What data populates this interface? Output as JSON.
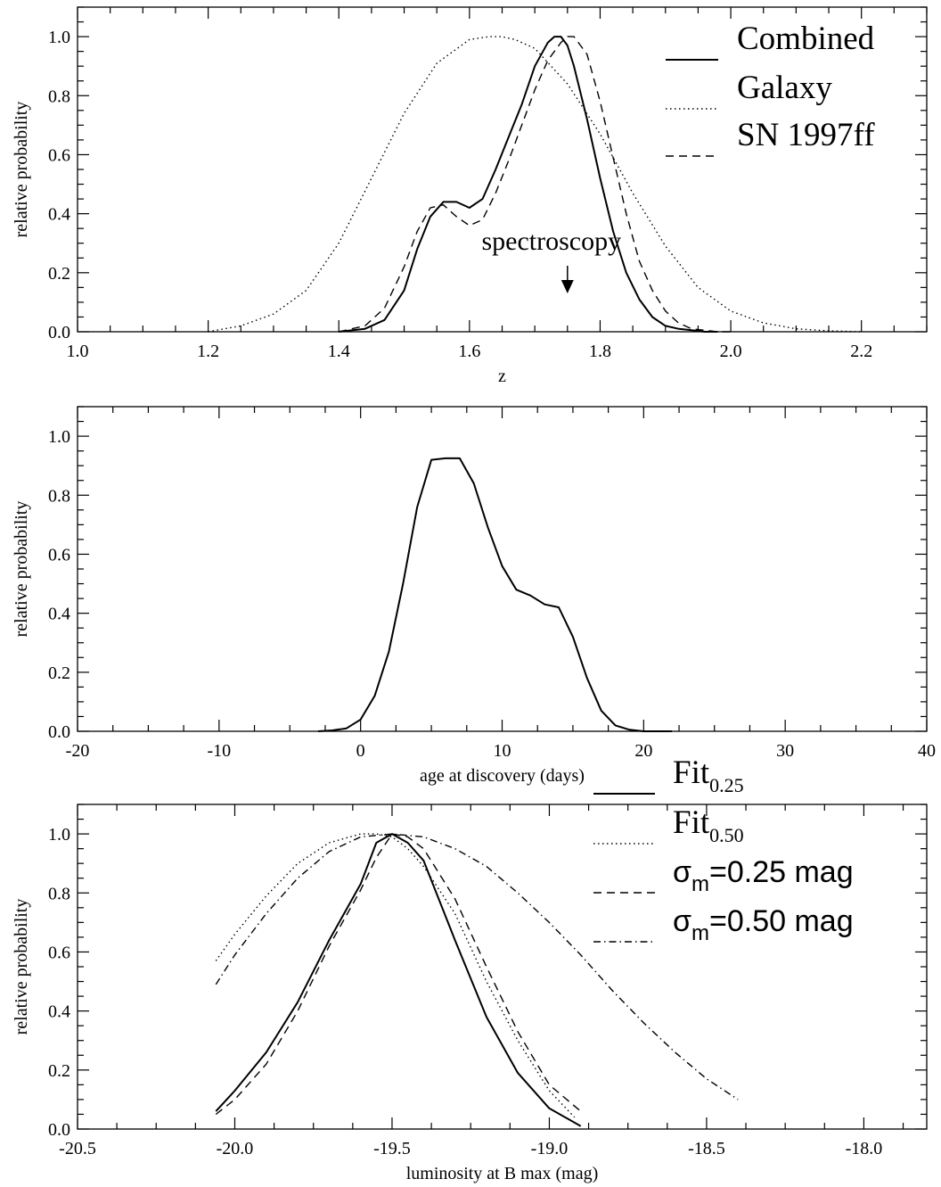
{
  "chart_data": [
    {
      "type": "line",
      "xlabel": "z",
      "ylabel": "relative probability",
      "xlim": [
        1.0,
        2.3
      ],
      "ylim": [
        0.0,
        1.1
      ],
      "xticks": [
        "1.0",
        "1.2",
        "1.4",
        "1.6",
        "1.8",
        "2.0",
        "2.2"
      ],
      "yticks": [
        "0.0",
        "0.2",
        "0.4",
        "0.6",
        "0.8",
        "1.0"
      ],
      "legend_position": "top-right",
      "series": [
        {
          "name": "Combined",
          "style": "solid",
          "x": [
            1.4,
            1.44,
            1.47,
            1.5,
            1.52,
            1.54,
            1.56,
            1.58,
            1.6,
            1.62,
            1.64,
            1.66,
            1.68,
            1.7,
            1.72,
            1.73,
            1.74,
            1.75,
            1.76,
            1.78,
            1.8,
            1.82,
            1.84,
            1.86,
            1.88,
            1.9,
            1.92,
            1.94,
            1.96,
            1.98
          ],
          "y": [
            0.0,
            0.01,
            0.04,
            0.14,
            0.28,
            0.39,
            0.44,
            0.44,
            0.42,
            0.45,
            0.55,
            0.66,
            0.77,
            0.9,
            0.98,
            1.0,
            1.0,
            0.97,
            0.9,
            0.72,
            0.52,
            0.34,
            0.2,
            0.11,
            0.05,
            0.02,
            0.01,
            0.005,
            0.0,
            0.0
          ]
        },
        {
          "name": "Galaxy",
          "style": "dotted",
          "x": [
            1.2,
            1.25,
            1.3,
            1.35,
            1.4,
            1.45,
            1.5,
            1.55,
            1.6,
            1.63,
            1.65,
            1.67,
            1.7,
            1.75,
            1.8,
            1.85,
            1.9,
            1.95,
            2.0,
            2.05,
            2.1,
            2.15,
            2.2
          ],
          "y": [
            0.0,
            0.02,
            0.06,
            0.14,
            0.3,
            0.52,
            0.74,
            0.91,
            0.99,
            1.0,
            1.0,
            0.99,
            0.96,
            0.84,
            0.67,
            0.47,
            0.29,
            0.15,
            0.07,
            0.03,
            0.01,
            0.003,
            0.0
          ]
        },
        {
          "name": "SN 1997ff",
          "style": "dashed",
          "x": [
            1.4,
            1.44,
            1.47,
            1.5,
            1.52,
            1.54,
            1.56,
            1.58,
            1.6,
            1.62,
            1.64,
            1.66,
            1.68,
            1.7,
            1.72,
            1.74,
            1.75,
            1.76,
            1.78,
            1.8,
            1.82,
            1.84,
            1.86,
            1.88,
            1.9,
            1.92,
            1.94,
            1.96,
            1.98,
            2.0
          ],
          "y": [
            0.0,
            0.02,
            0.08,
            0.22,
            0.34,
            0.42,
            0.43,
            0.39,
            0.36,
            0.38,
            0.47,
            0.58,
            0.7,
            0.82,
            0.92,
            0.98,
            1.0,
            1.0,
            0.94,
            0.78,
            0.59,
            0.4,
            0.24,
            0.14,
            0.07,
            0.03,
            0.01,
            0.005,
            0.0,
            0.0
          ]
        }
      ],
      "annotations": [
        {
          "text": "spectroscopy",
          "x": 1.75,
          "y": 0.26,
          "arrow": "down"
        }
      ]
    },
    {
      "type": "line",
      "xlabel": "age at discovery (days)",
      "ylabel": "relative probability",
      "xlim": [
        -20,
        40
      ],
      "ylim": [
        0.0,
        1.1
      ],
      "xticks": [
        "-20",
        "-10",
        "0",
        "10",
        "20",
        "30",
        "40"
      ],
      "yticks": [
        "0.0",
        "0.2",
        "0.4",
        "0.6",
        "0.8",
        "1.0"
      ],
      "series": [
        {
          "style": "solid",
          "x": [
            -3,
            -2,
            -1,
            0,
            1,
            2,
            3,
            4,
            5,
            6,
            7,
            8,
            9,
            10,
            11,
            12,
            13,
            14,
            15,
            16,
            17,
            18,
            19,
            20,
            21,
            22
          ],
          "y": [
            0.0,
            0.003,
            0.01,
            0.04,
            0.12,
            0.27,
            0.5,
            0.76,
            0.92,
            0.925,
            0.925,
            0.84,
            0.69,
            0.56,
            0.48,
            0.46,
            0.43,
            0.42,
            0.32,
            0.18,
            0.07,
            0.02,
            0.005,
            0.0,
            0.0,
            0.0
          ]
        }
      ]
    },
    {
      "type": "line",
      "xlabel": "luminosity at B max (mag)",
      "ylabel": "relative probability",
      "xlim": [
        -20.5,
        -17.8
      ],
      "ylim": [
        0.0,
        1.1
      ],
      "xticks": [
        "-20.5",
        "-20.0",
        "-19.5",
        "-19.0",
        "-18.5",
        "-18.0"
      ],
      "yticks": [
        "0.0",
        "0.2",
        "0.4",
        "0.6",
        "0.8",
        "1.0"
      ],
      "legend_position": "top-right",
      "series": [
        {
          "name": "Fit",
          "name_sub": "0.25",
          "style": "solid",
          "x": [
            -20.06,
            -20.0,
            -19.9,
            -19.8,
            -19.7,
            -19.6,
            -19.55,
            -19.5,
            -19.45,
            -19.4,
            -19.3,
            -19.2,
            -19.1,
            -19.0,
            -18.9
          ],
          "y": [
            0.06,
            0.13,
            0.26,
            0.43,
            0.64,
            0.83,
            0.97,
            1.0,
            0.97,
            0.91,
            0.64,
            0.38,
            0.19,
            0.07,
            0.01
          ]
        },
        {
          "name": "Fit",
          "name_sub": "0.50",
          "style": "dotted",
          "x": [
            -20.06,
            -20.0,
            -19.9,
            -19.8,
            -19.7,
            -19.6,
            -19.55,
            -19.5,
            -19.45,
            -19.4,
            -19.3,
            -19.2,
            -19.1,
            -19.0,
            -18.92
          ],
          "y": [
            0.57,
            0.66,
            0.79,
            0.9,
            0.97,
            1.0,
            1.0,
            0.99,
            0.95,
            0.89,
            0.73,
            0.5,
            0.3,
            0.13,
            0.04
          ]
        },
        {
          "name": "σ",
          "name_sub": "m",
          "name_suffix": "=0.25 mag",
          "style": "dashed",
          "x": [
            -20.06,
            -20.0,
            -19.9,
            -19.8,
            -19.7,
            -19.6,
            -19.55,
            -19.5,
            -19.45,
            -19.4,
            -19.3,
            -19.2,
            -19.1,
            -19.0,
            -18.9
          ],
          "y": [
            0.05,
            0.1,
            0.22,
            0.4,
            0.62,
            0.81,
            0.92,
            1.0,
            0.99,
            0.95,
            0.78,
            0.55,
            0.33,
            0.15,
            0.06
          ]
        },
        {
          "name": "σ",
          "name_sub": "m",
          "name_suffix": "=0.50 mag",
          "style": "dashdot",
          "x": [
            -20.06,
            -20.0,
            -19.9,
            -19.8,
            -19.7,
            -19.6,
            -19.5,
            -19.4,
            -19.3,
            -19.2,
            -19.1,
            -19.0,
            -18.9,
            -18.8,
            -18.7,
            -18.6,
            -18.5,
            -18.4
          ],
          "y": [
            0.49,
            0.59,
            0.73,
            0.85,
            0.94,
            0.99,
            1.0,
            0.99,
            0.95,
            0.89,
            0.8,
            0.7,
            0.59,
            0.47,
            0.36,
            0.26,
            0.17,
            0.1
          ]
        }
      ]
    }
  ]
}
